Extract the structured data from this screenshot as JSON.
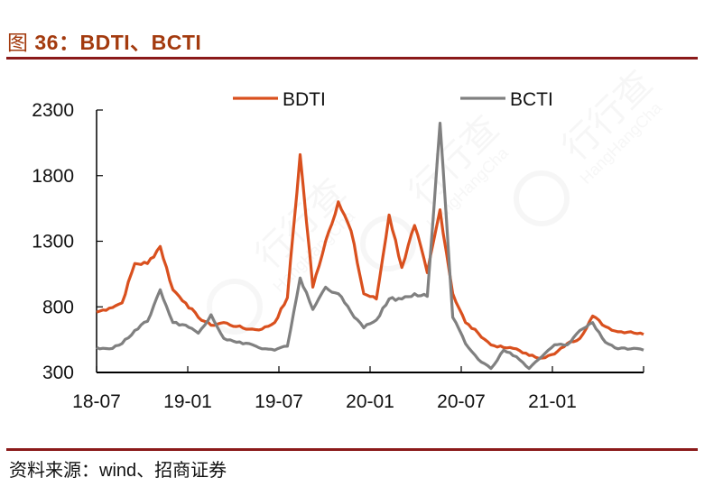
{
  "header": {
    "figure_prefix": "图",
    "figure_title": " 36：BDTI、BCTI"
  },
  "footer": {
    "source_prefix": "资料来源：",
    "source_name": "wind",
    "source_suffix": "、招商证券"
  },
  "watermark": {
    "text_cn": "行行查",
    "text_en": "HangHangCha"
  },
  "colors": {
    "bdti": "#d9501e",
    "bcti": "#808080",
    "title": "#a33a0e",
    "rule": "#8b1a1a"
  },
  "chart_data": {
    "type": "line",
    "title": "图 36：BDTI、BCTI",
    "xlabel": "",
    "ylabel": "",
    "ylim": [
      300,
      2300
    ],
    "yticks": [
      300,
      800,
      1300,
      1800,
      2300
    ],
    "xtick_labels": [
      "18-07",
      "19-01",
      "19-07",
      "20-01",
      "20-07",
      "21-01"
    ],
    "grid": false,
    "legend_position": "top",
    "x": [
      "2018-07",
      "2018-08",
      "2018-09",
      "2018-10",
      "2018-11",
      "2018-11b",
      "2018-12",
      "2019-01",
      "2019-02",
      "2019-03",
      "2019-04",
      "2019-05",
      "2019-06",
      "2019-07",
      "2019-08",
      "2019-09",
      "2019-10",
      "2019-10b",
      "2019-11",
      "2019-11b",
      "2019-12",
      "2019-12b",
      "2020-01",
      "2020-02",
      "2020-02b",
      "2020-03",
      "2020-03b",
      "2020-04",
      "2020-04b",
      "2020-05",
      "2020-06",
      "2020-07",
      "2020-08",
      "2020-09",
      "2020-10",
      "2020-11",
      "2020-12",
      "2021-01",
      "2021-02",
      "2021-03",
      "2021-04",
      "2021-05",
      "2021-06",
      "2021-07"
    ],
    "series": [
      {
        "name": "BDTI",
        "values": [
          760,
          790,
          830,
          1130,
          1130,
          1260,
          930,
          830,
          720,
          660,
          680,
          650,
          630,
          630,
          680,
          870,
          1960,
          950,
          1300,
          1600,
          1380,
          900,
          860,
          1500,
          1100,
          1420,
          1060,
          1540,
          900,
          680,
          600,
          510,
          490,
          480,
          430,
          410,
          440,
          520,
          560,
          730,
          650,
          610,
          610,
          590
        ]
      },
      {
        "name": "BCTI",
        "values": [
          490,
          480,
          520,
          620,
          690,
          930,
          680,
          660,
          600,
          740,
          560,
          530,
          520,
          480,
          470,
          500,
          1020,
          780,
          950,
          900,
          760,
          640,
          700,
          860,
          860,
          900,
          880,
          2200,
          720,
          520,
          400,
          330,
          470,
          420,
          330,
          420,
          510,
          510,
          620,
          680,
          530,
          480,
          480,
          470
        ]
      }
    ]
  },
  "legend": {
    "items": [
      {
        "label": "BDTI"
      },
      {
        "label": "BCTI"
      }
    ]
  }
}
